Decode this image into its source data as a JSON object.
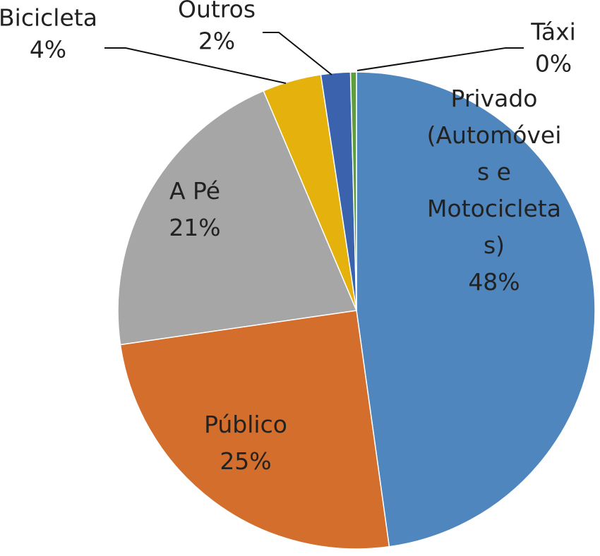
{
  "chart_data": {
    "type": "pie",
    "slices": [
      {
        "label": "Privado (Automóveis e Motocicletas)",
        "value": 48,
        "value_label": "48%",
        "color": "#4f86bd",
        "label_lines": [
          "Privado",
          "(Automóvei",
          "s e",
          "Motocicleta",
          "s)"
        ]
      },
      {
        "label": "Público",
        "value": 25,
        "value_label": "25%",
        "color": "#d46e2c",
        "label_lines": [
          "Público"
        ]
      },
      {
        "label": "A Pé",
        "value": 21,
        "value_label": "21%",
        "color": "#a6a6a6",
        "label_lines": [
          "A Pé"
        ]
      },
      {
        "label": "Bicicleta",
        "value": 4,
        "value_label": "4%",
        "color": "#e5b10c",
        "label_lines": [
          "Bicicleta"
        ]
      },
      {
        "label": "Outros",
        "value": 2,
        "value_label": "2%",
        "color": "#3a62ad",
        "label_lines": [
          "Outros"
        ]
      },
      {
        "label": "Táxi",
        "value": 0.4,
        "value_label": "0%",
        "color": "#5e9e3c",
        "label_lines": [
          "Táxi"
        ]
      }
    ],
    "start_angle_deg": 0,
    "direction": "clockwise",
    "label_positions": [
      "inside",
      "inside",
      "inside",
      "outside-left",
      "outside-top",
      "outside-right"
    ]
  }
}
